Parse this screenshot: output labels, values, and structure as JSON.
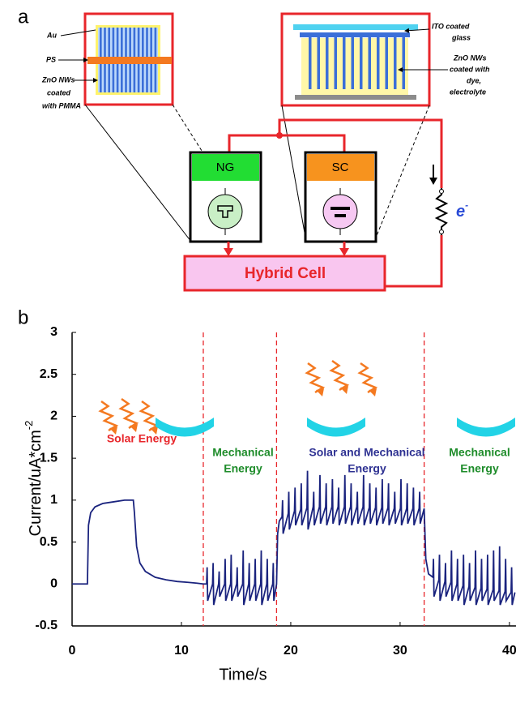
{
  "panel_a": {
    "label": "a",
    "left_labels": {
      "au": "Au",
      "ps": "PS",
      "zno": [
        "ZnO NWs",
        "coated",
        "with PMMA"
      ]
    },
    "right_labels": {
      "ito": [
        "ITO coated",
        "glass"
      ],
      "zno": [
        "ZnO NWs",
        "coated with",
        "dye,",
        "electrolyte"
      ]
    },
    "ng": "NG",
    "sc": "SC",
    "electron": {
      "text": "e",
      "sup": "-"
    },
    "hybrid": "Hybrid Cell"
  },
  "panel_b": {
    "label": "b"
  },
  "chart_data": {
    "type": "line",
    "xlabel": "Time/s",
    "ylabel": {
      "text": "Current/uA*cm",
      "sup": "-2"
    },
    "xlim": [
      0,
      40.6
    ],
    "xticks": [
      0,
      10,
      20,
      30,
      40
    ],
    "ylim": [
      -0.5,
      3
    ],
    "yticks": [
      -0.5,
      0,
      0.5,
      1,
      1.5,
      2,
      2.5,
      3
    ],
    "dividers": [
      12,
      18.7,
      32.2
    ],
    "divider_color": "#e8262b",
    "annotations": [
      {
        "lines": [
          "Solar Energy"
        ],
        "color": "#e8262b"
      },
      {
        "lines": [
          "Mechanical",
          "Energy"
        ],
        "color": "#1e8c2a"
      },
      {
        "lines": [
          "Solar and Mechanical",
          "Energy"
        ],
        "color": "#2e3192"
      },
      {
        "lines": [
          "Mechanical",
          "Energy"
        ],
        "color": "#1e8c2a"
      }
    ],
    "series": [
      {
        "color": "#1a237e",
        "x": [
          0,
          1.4,
          1.5,
          1.7,
          2.1,
          2.8,
          3.8,
          4.8,
          5.6,
          5.7,
          5.9,
          6.2,
          6.7,
          7.6,
          8.6,
          9.6,
          10.6,
          11.4,
          12.0,
          12.3,
          12.35,
          12.4,
          12.85,
          12.9,
          12.95,
          13.4,
          13.45,
          13.5,
          13.95,
          14,
          14.05,
          14.5,
          14.55,
          14.6,
          15.05,
          15.1,
          15.15,
          15.6,
          15.65,
          15.7,
          16.15,
          16.2,
          16.25,
          16.7,
          16.75,
          16.8,
          17.25,
          17.3,
          17.35,
          17.8,
          17.85,
          17.9,
          18.35,
          18.4,
          18.45,
          18.7,
          18.8,
          18.95,
          19.2,
          19.25,
          19.3,
          19.77,
          19.82,
          19.87,
          20.34,
          20.39,
          20.44,
          20.91,
          20.96,
          21.01,
          21.48,
          21.53,
          21.58,
          22.05,
          22.1,
          22.15,
          22.62,
          22.67,
          22.72,
          23.19,
          23.24,
          23.29,
          23.76,
          23.81,
          23.86,
          24.33,
          24.38,
          24.43,
          24.9,
          24.95,
          25,
          25.47,
          25.52,
          25.57,
          26.04,
          26.09,
          26.14,
          26.61,
          26.66,
          26.71,
          27.18,
          27.23,
          27.28,
          27.75,
          27.8,
          27.85,
          28.32,
          28.37,
          28.42,
          28.89,
          28.94,
          28.99,
          29.46,
          29.51,
          29.56,
          30.03,
          30.08,
          30.13,
          30.6,
          30.65,
          30.7,
          31.17,
          31.22,
          31.27,
          31.74,
          31.79,
          31.84,
          32.2,
          32.35,
          32.6,
          33,
          33.05,
          33.1,
          33.55,
          33.6,
          33.65,
          34.1,
          34.15,
          34.2,
          34.65,
          34.7,
          34.75,
          35.2,
          35.25,
          35.3,
          35.75,
          35.8,
          35.85,
          36.3,
          36.35,
          36.4,
          36.85,
          36.9,
          36.95,
          37.4,
          37.45,
          37.5,
          37.95,
          38,
          38.05,
          38.5,
          38.55,
          38.6,
          39.05,
          39.1,
          39.15,
          39.6,
          39.65,
          39.7,
          40.15,
          40.2,
          40.25,
          40.5
        ],
        "values": [
          0,
          0,
          0.7,
          0.85,
          0.92,
          0.96,
          0.98,
          1.0,
          1.0,
          0.85,
          0.45,
          0.25,
          0.15,
          0.08,
          0.05,
          0.03,
          0.02,
          0.01,
          0,
          0,
          0.2,
          -0.2,
          0,
          0.25,
          -0.25,
          0,
          0.15,
          -0.15,
          0,
          0.3,
          -0.2,
          0,
          0.35,
          -0.2,
          0,
          0.2,
          -0.15,
          0,
          0.4,
          -0.25,
          0,
          0.25,
          -0.2,
          0,
          0.3,
          -0.2,
          0,
          0.4,
          -0.25,
          0,
          0.3,
          -0.2,
          0,
          0.25,
          -0.2,
          0,
          0.6,
          0.75,
          0.8,
          1,
          0.6,
          0.84,
          1.1,
          0.65,
          0.87,
          1.15,
          0.7,
          0.89,
          1.2,
          0.7,
          0.91,
          1.35,
          0.65,
          0.92,
          1.1,
          0.7,
          0.92,
          1.3,
          0.72,
          0.92,
          1.2,
          0.7,
          0.92,
          1.25,
          0.72,
          0.92,
          1.15,
          0.7,
          0.92,
          1.3,
          0.72,
          0.92,
          1.2,
          0.7,
          0.92,
          1.1,
          0.72,
          0.92,
          1.3,
          0.7,
          0.91,
          1.2,
          0.72,
          0.91,
          1.15,
          0.7,
          0.91,
          1.25,
          0.72,
          0.91,
          1.2,
          0.7,
          0.9,
          1.1,
          0.72,
          0.9,
          1.25,
          0.7,
          0.9,
          1.2,
          0.72,
          0.9,
          1.15,
          0.7,
          0.9,
          1.1,
          0.72,
          0.9,
          0.3,
          0.12,
          0.08,
          0.3,
          -0.15,
          0.05,
          0.35,
          -0.2,
          0.03,
          0.25,
          -0.15,
          0.02,
          0.4,
          -0.2,
          0,
          0.3,
          -0.2,
          -0.02,
          0.35,
          -0.25,
          -0.03,
          0.25,
          -0.2,
          -0.04,
          0.4,
          -0.25,
          -0.05,
          0.3,
          -0.2,
          -0.06,
          0.35,
          -0.25,
          -0.07,
          0.4,
          -0.2,
          -0.08,
          0.45,
          -0.25,
          -0.09,
          0.3,
          -0.2,
          -0.1,
          0.2,
          -0.25,
          -0.1
        ]
      }
    ]
  }
}
